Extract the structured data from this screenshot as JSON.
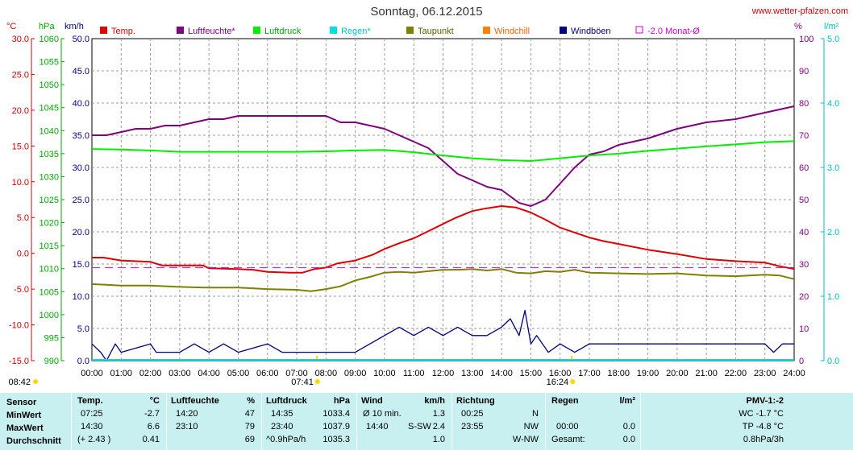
{
  "title": "Sonntag, 06.12.2015",
  "website": "www.wetter-pfalzen.com",
  "axis_units": {
    "temp": "°C",
    "pressure": "hPa",
    "wind": "km/h",
    "humidity": "%",
    "rain": "l/m²"
  },
  "axes": {
    "temp_ticks": [
      "30.0",
      "25.0",
      "20.0",
      "15.0",
      "10.0",
      "5.0",
      "0.0",
      "-5.0",
      "-10.0",
      "-15.0"
    ],
    "pressure_ticks": [
      "1060",
      "1055",
      "1050",
      "1045",
      "1040",
      "1035",
      "1030",
      "1025",
      "1020",
      "1015",
      "1010",
      "1005",
      "1000",
      "995",
      "990"
    ],
    "wind_ticks": [
      "50.0",
      "45.0",
      "40.0",
      "35.0",
      "30.0",
      "25.0",
      "20.0",
      "15.0",
      "10.0",
      "5.0",
      "0.0"
    ],
    "humidity_ticks": [
      "100",
      "90",
      "80",
      "70",
      "60",
      "50",
      "40",
      "30",
      "20",
      "10",
      "0"
    ],
    "rain_ticks": [
      "5.0",
      "4.0",
      "3.0",
      "2.0",
      "1.0",
      "0.0"
    ],
    "time_ticks": [
      "00:00",
      "01:00",
      "02:00",
      "03:00",
      "04:00",
      "05:00",
      "06:00",
      "07:00",
      "08:00",
      "09:00",
      "10:00",
      "11:00",
      "12:00",
      "13:00",
      "14:00",
      "15:00",
      "16:00",
      "17:00",
      "18:00",
      "19:00",
      "20:00",
      "21:00",
      "22:00",
      "23:00",
      "24:00"
    ],
    "sunrise": "08:42",
    "markers": [
      "07:41",
      "16:24"
    ]
  },
  "legend": [
    {
      "label": "Temp.",
      "color": "#e00000",
      "text_color": "#e00000",
      "box": "filled"
    },
    {
      "label": "Luftfeuchte*",
      "color": "#800080",
      "text_color": "#800080",
      "box": "filled"
    },
    {
      "label": "Luftdruck",
      "color": "#00ee00",
      "text_color": "#00aa00",
      "box": "filled"
    },
    {
      "label": "Regen*",
      "color": "#00e0e0",
      "text_color": "#00c8c8",
      "box": "filled"
    },
    {
      "label": "Taupunkt",
      "color": "#808000",
      "text_color": "#606000",
      "box": "filled"
    },
    {
      "label": "Windchill",
      "color": "#ff8000",
      "text_color": "#ff6000",
      "box": "filled"
    },
    {
      "label": "Windböen",
      "color": "#000080",
      "text_color": "#000080",
      "box": "filled"
    },
    {
      "label": "-2.0 Monat-Ø",
      "color": "#cc00cc",
      "text_color": "#cc00cc",
      "box": "outline"
    }
  ],
  "chart_data": {
    "type": "line",
    "x_unit": "hour",
    "x_range": [
      0,
      24
    ],
    "series": [
      {
        "name": "Temp.",
        "axis": "temp",
        "ylim": [
          -15,
          30
        ],
        "color": "#e00000",
        "x": [
          0,
          0.4,
          1,
          2,
          2.4,
          3,
          3.8,
          4,
          5,
          5.5,
          6,
          6.8,
          7.2,
          7.6,
          8,
          8.4,
          9,
          9.6,
          10,
          10.5,
          11,
          11.5,
          12,
          12.4,
          13,
          13.5,
          14,
          14.5,
          15,
          15.5,
          16,
          16.5,
          17,
          17.5,
          18,
          19,
          20,
          21,
          22,
          23,
          23.5,
          24
        ],
        "y": [
          -0.6,
          -0.6,
          -1.0,
          -1.2,
          -1.7,
          -1.7,
          -1.7,
          -2.1,
          -2.2,
          -2.3,
          -2.6,
          -2.7,
          -2.7,
          -2.2,
          -2.0,
          -1.4,
          -1.0,
          -0.2,
          0.6,
          1.4,
          2.1,
          3.1,
          4.1,
          4.9,
          5.9,
          6.3,
          6.6,
          6.4,
          5.7,
          4.7,
          3.6,
          2.9,
          2.2,
          1.7,
          1.3,
          0.5,
          -0.1,
          -0.8,
          -1.1,
          -1.3,
          -1.8,
          -2.2
        ]
      },
      {
        "name": "Luftfeuchte*",
        "axis": "humidity",
        "ylim": [
          0,
          100
        ],
        "color": "#800080",
        "x": [
          0,
          0.5,
          1,
          1.5,
          2,
          2.5,
          3,
          3.5,
          4,
          4.5,
          5,
          5.5,
          6,
          6.5,
          7,
          7.5,
          8,
          8.5,
          9,
          9.5,
          10,
          10.5,
          11,
          11.5,
          12,
          12.5,
          13,
          13.5,
          14,
          14.3,
          14.6,
          15,
          15.5,
          16,
          16.5,
          17,
          17.5,
          18,
          18.5,
          19,
          20,
          21,
          22,
          23,
          24
        ],
        "y": [
          70,
          70,
          71,
          72,
          72,
          73,
          73,
          74,
          75,
          75,
          76,
          76,
          76,
          76,
          76,
          76,
          76,
          74,
          74,
          73,
          72,
          70,
          68,
          66,
          62,
          58,
          56,
          54,
          53,
          51,
          49,
          48,
          50,
          55,
          60,
          64,
          65,
          67,
          68,
          69,
          72,
          74,
          75,
          77,
          79
        ]
      },
      {
        "name": "Luftdruck",
        "axis": "pressure",
        "ylim": [
          990,
          1060
        ],
        "color": "#00ee00",
        "x": [
          0,
          1,
          2,
          3,
          4,
          5,
          6,
          7,
          8,
          9,
          10,
          11,
          12,
          13,
          14,
          15,
          16,
          17,
          18,
          19,
          20,
          21,
          22,
          23,
          24
        ],
        "y": [
          1036.0,
          1035.9,
          1035.7,
          1035.4,
          1035.4,
          1035.4,
          1035.4,
          1035.4,
          1035.5,
          1035.7,
          1035.8,
          1035.3,
          1034.6,
          1034.0,
          1033.6,
          1033.4,
          1034.0,
          1034.6,
          1035.0,
          1035.6,
          1036.1,
          1036.6,
          1037.0,
          1037.5,
          1037.7
        ]
      },
      {
        "name": "Taupunkt",
        "axis": "temp",
        "ylim": [
          -15,
          30
        ],
        "color": "#808000",
        "x": [
          0,
          1,
          2,
          3,
          4,
          5,
          6,
          7,
          7.5,
          8,
          8.5,
          9,
          9.5,
          10,
          10.5,
          11,
          11.5,
          12,
          12.5,
          13,
          13.5,
          14,
          14.5,
          15,
          15.5,
          16,
          16.5,
          17,
          18,
          19,
          20,
          21,
          22,
          23,
          23.5,
          24
        ],
        "y": [
          -4.3,
          -4.5,
          -4.5,
          -4.7,
          -4.8,
          -4.8,
          -5.0,
          -5.1,
          -5.3,
          -5.0,
          -4.6,
          -3.8,
          -3.3,
          -2.7,
          -2.6,
          -2.7,
          -2.5,
          -2.3,
          -2.3,
          -2.2,
          -2.4,
          -2.2,
          -2.7,
          -2.8,
          -2.5,
          -2.6,
          -2.3,
          -2.7,
          -2.8,
          -2.9,
          -2.8,
          -3.1,
          -3.2,
          -3.0,
          -3.1,
          -3.6
        ]
      },
      {
        "name": "Windböen",
        "axis": "wind",
        "ylim": [
          0,
          50
        ],
        "color": "#000080",
        "x": [
          0,
          0.3,
          0.5,
          0.8,
          1,
          2,
          2.2,
          3,
          3.5,
          4,
          4.5,
          5,
          6,
          6.5,
          7,
          8,
          9,
          9.5,
          10,
          10.5,
          11,
          11.5,
          12,
          12.5,
          13,
          13.5,
          14,
          14.3,
          14.6,
          14.8,
          15,
          15.2,
          15.6,
          16,
          16.5,
          17,
          18,
          19,
          20,
          21,
          22,
          23,
          23.3,
          23.6,
          24
        ],
        "y": [
          2.6,
          1.3,
          0,
          2.6,
          1.3,
          2.6,
          1.3,
          1.3,
          2.6,
          1.3,
          2.6,
          1.3,
          2.6,
          1.3,
          1.3,
          1.3,
          1.3,
          2.6,
          3.9,
          5.2,
          3.9,
          5.2,
          3.9,
          5.2,
          3.9,
          3.9,
          5.2,
          6.5,
          3.9,
          7.8,
          2.6,
          3.9,
          1.3,
          2.6,
          1.3,
          2.6,
          2.6,
          2.6,
          2.6,
          2.6,
          2.6,
          2.6,
          1.3,
          2.6,
          2.6
        ]
      },
      {
        "name": "-2.0 Monat-Ø",
        "axis": "temp",
        "ylim": [
          -15,
          30
        ],
        "color": "#cc00cc",
        "dashed": true,
        "x": [
          0,
          24
        ],
        "y": [
          -2.0,
          -2.0
        ]
      }
    ]
  },
  "footer": {
    "row_labels": {
      "header": "Sensor",
      "min": "MinWert",
      "max": "MaxWert",
      "avg": "Durchschnitt"
    },
    "temp": {
      "title": "Temp.",
      "unit": "°C",
      "min_time": "07:25",
      "min_val": "-2.7",
      "max_time": "14:30",
      "max_val": "6.6",
      "avg_note": "(+ 2.43 )",
      "avg_val": "0.41"
    },
    "hum": {
      "title": "Luftfeuchte",
      "unit": "%",
      "min_time": "14:20",
      "min_val": "47",
      "max_time": "23:10",
      "max_val": "79",
      "avg_val": "69"
    },
    "press": {
      "title": "Luftdruck",
      "unit": "hPa",
      "min_time": "14:35",
      "min_val": "1033.4",
      "max_time": "23:40",
      "max_val": "1037.9",
      "avg_note": "^0.9hPa/h",
      "avg_val": "1035.3"
    },
    "wind": {
      "title": "Wind",
      "unit": "km/h",
      "r1_label": "Ø 10 min.",
      "r1_val": "1.3",
      "r2_time": "14:40",
      "r2_dir": "S-SW",
      "r2_val": "2.4",
      "avg_val": "1.0"
    },
    "dir": {
      "title": "Richtung",
      "r1_time": "00:25",
      "r1_val": "N",
      "r2_time": "23:55",
      "r2_val": "NW",
      "avg_val": "W-NW"
    },
    "rain": {
      "title": "Regen",
      "unit": "l/m²",
      "r2_time": "00:00",
      "r2_val": "0.0",
      "avg_label": "Gesamt:",
      "avg_val": "0.0"
    },
    "pmv": {
      "title": "PMV-1:-2",
      "r1": "WC -1.7 °C",
      "r2": "TP -4.8 °C",
      "r3": "0.8hPa/3h"
    }
  }
}
